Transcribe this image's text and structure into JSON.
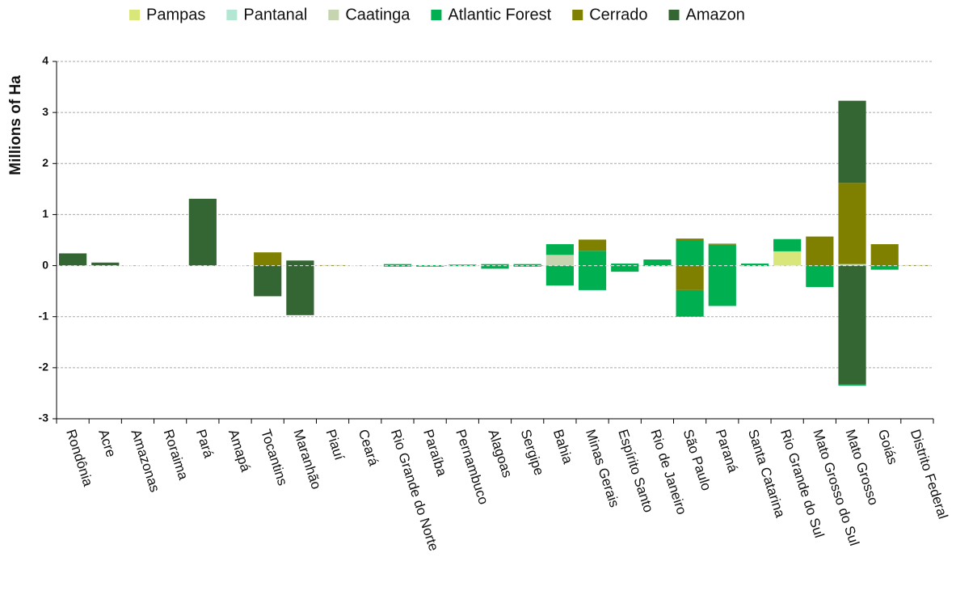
{
  "chart_data": {
    "type": "bar",
    "stacked": true,
    "y_label": "Millions of Ha",
    "categories": [
      "Rondônia",
      "Acre",
      "Amazonas",
      "Roraima",
      "Pará",
      "Amapá",
      "Tocantins",
      "Maranhão",
      "Piauí",
      "Ceará",
      "Rio Grande do Norte",
      "Paraíba",
      "Pernambuco",
      "Alagoas",
      "Sergipe",
      "Bahia",
      "Minas Gerais",
      "Espírito Santo",
      "Rio de Janeiro",
      "São Paulo",
      "Paraná",
      "Santa Catarina",
      "Rio Grande do Sul",
      "Mato Grosso do Sul",
      "Mato Grosso",
      "Goiás",
      "Distrito Federal"
    ],
    "series": [
      {
        "name": "Pampas",
        "color": "#d9e67a",
        "values": [
          0,
          0,
          0,
          0,
          0,
          0,
          0,
          0,
          0,
          0,
          0,
          0,
          0,
          0,
          0,
          0,
          0,
          0,
          0,
          0,
          0,
          0,
          0.28,
          0,
          0,
          0,
          0
        ],
        "losses": [
          0,
          0,
          0,
          0,
          0,
          0,
          0,
          0,
          0,
          0,
          0,
          0,
          0,
          0,
          0,
          0,
          0,
          0,
          0,
          0,
          0,
          0,
          0,
          0,
          0,
          0,
          0
        ]
      },
      {
        "name": "Pantanal",
        "color": "#b3e6d3",
        "values": [
          0,
          0,
          0,
          0,
          0,
          0,
          0,
          0,
          0,
          0,
          0,
          0,
          0,
          0,
          0,
          0,
          0,
          0,
          0,
          0,
          0,
          0,
          0,
          0,
          0.03,
          0,
          0
        ],
        "losses": [
          0,
          0,
          0,
          0,
          0,
          0,
          0,
          0,
          0,
          0,
          0,
          0,
          0,
          0,
          0,
          0,
          0,
          0,
          0,
          0,
          0,
          0,
          0,
          0,
          0,
          0,
          0
        ]
      },
      {
        "name": "Caatinga",
        "color": "#c6d4b0",
        "values": [
          0,
          0,
          0,
          0,
          0,
          0,
          0,
          0,
          0,
          0,
          0,
          0,
          0,
          0,
          0,
          0.21,
          0,
          0,
          0,
          0,
          0,
          0,
          0,
          0,
          0,
          0,
          0
        ],
        "losses": [
          0,
          0,
          0,
          0,
          0,
          0,
          0,
          0,
          0,
          0,
          0,
          0,
          0,
          0,
          0,
          0,
          0,
          0,
          0,
          0,
          0,
          0,
          0,
          0,
          0,
          0,
          0
        ]
      },
      {
        "name": "Atlantic Forest",
        "color": "#00b050",
        "values": [
          0,
          0,
          0,
          0,
          0,
          0,
          0,
          0,
          0,
          0,
          0.03,
          0.01,
          0.02,
          0.03,
          0.03,
          0.21,
          0.29,
          0.04,
          0.12,
          0.5,
          0.41,
          0.04,
          0.24,
          0,
          0,
          0,
          0
        ],
        "losses": [
          0,
          0,
          0,
          0,
          0,
          0,
          0,
          0,
          0,
          0,
          -0.02,
          -0.02,
          -0.01,
          -0.06,
          -0.02,
          -0.39,
          -0.48,
          -0.12,
          -0.01,
          -0.52,
          -0.79,
          -0.01,
          0,
          -0.42,
          -0.02,
          -0.08,
          0
        ]
      },
      {
        "name": "Cerrado",
        "color": "#808000",
        "values": [
          0,
          0,
          0,
          0,
          0,
          0,
          0.26,
          0,
          0.01,
          0,
          0,
          0,
          0,
          0,
          0,
          0,
          0.22,
          0,
          0,
          0.03,
          0.02,
          0,
          0,
          0.57,
          1.59,
          0.42,
          0.01
        ],
        "losses": [
          0,
          0,
          0,
          0,
          0,
          0,
          0,
          0,
          0,
          0,
          0,
          0,
          0,
          0,
          0,
          0,
          0,
          0,
          0,
          -0.48,
          0,
          0,
          0,
          0,
          0,
          0,
          0
        ]
      },
      {
        "name": "Amazon",
        "color": "#336633",
        "values": [
          0.24,
          0.06,
          0,
          0,
          1.31,
          0,
          0,
          0.1,
          0,
          0,
          0,
          0,
          0,
          0,
          0,
          0,
          0,
          0,
          0,
          0,
          0,
          0,
          0,
          0,
          1.61,
          0,
          0
        ],
        "losses": [
          0,
          0,
          0,
          0,
          0,
          0,
          -0.6,
          -0.97,
          0,
          0,
          0,
          0,
          0,
          0,
          0,
          0,
          0,
          0,
          0,
          0,
          0,
          0,
          0,
          0,
          -2.33,
          0,
          0
        ]
      }
    ],
    "ylim": [
      -3,
      4
    ],
    "yticks": [
      -3,
      -2,
      -1,
      0,
      1,
      2,
      3,
      4
    ],
    "grid": true,
    "legend": "top"
  }
}
